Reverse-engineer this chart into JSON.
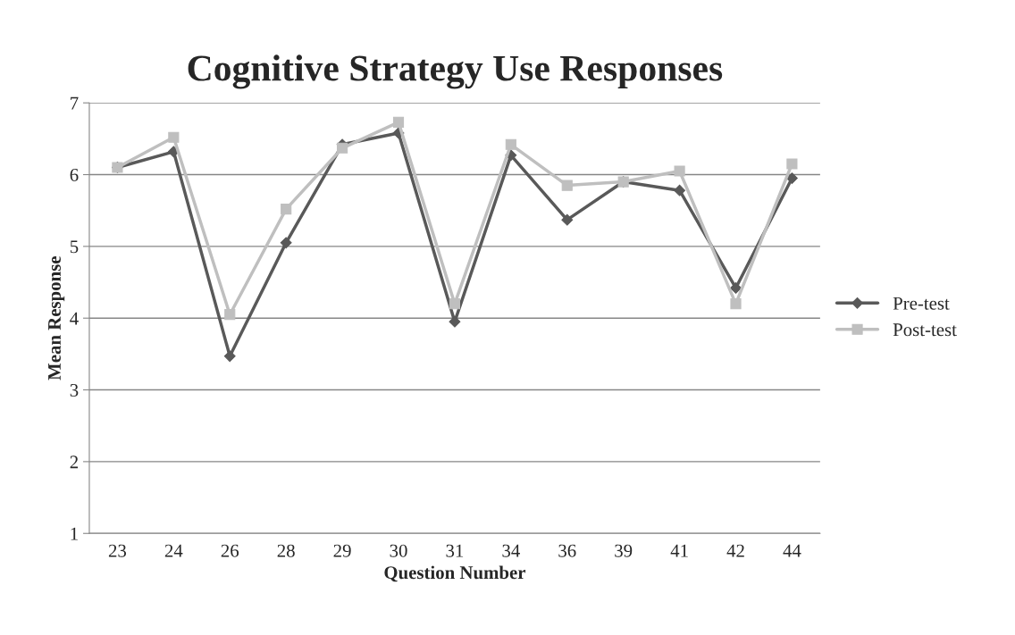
{
  "chart_data": {
    "type": "line",
    "title": "Cognitive Strategy Use Responses",
    "xlabel": "Question Number",
    "ylabel": "Mean Response",
    "categories": [
      "23",
      "24",
      "26",
      "28",
      "29",
      "30",
      "31",
      "34",
      "36",
      "39",
      "41",
      "42",
      "44"
    ],
    "series": [
      {
        "name": "Pre-test",
        "color": "#595959",
        "marker": "diamond",
        "values": [
          6.1,
          6.32,
          3.47,
          5.05,
          6.42,
          6.58,
          3.95,
          6.27,
          5.37,
          5.9,
          5.78,
          4.42,
          5.95
        ]
      },
      {
        "name": "Post-test",
        "color": "#bfbfbf",
        "marker": "square",
        "values": [
          6.1,
          6.52,
          4.05,
          5.52,
          6.37,
          6.73,
          4.2,
          6.42,
          5.85,
          5.9,
          6.05,
          4.2,
          6.15
        ]
      }
    ],
    "ylim": [
      1,
      7
    ],
    "yticks": [
      1,
      2,
      3,
      4,
      5,
      6,
      7
    ],
    "grid": "y",
    "legend": "right",
    "line_style": "solid"
  }
}
